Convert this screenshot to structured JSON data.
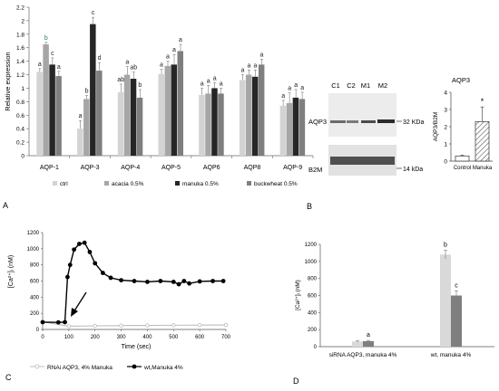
{
  "panel_letters": {
    "a": "A",
    "b": "B",
    "c": "C",
    "d": "D"
  },
  "chart_data": [
    {
      "id": "A",
      "type": "bar",
      "ylabel": "Relative expression",
      "ylim": [
        0,
        2.2
      ],
      "yticks": [
        "0",
        "0.2",
        "0.4",
        "0.6",
        "0.8",
        "1",
        "1.2",
        "1.4",
        "1.6",
        "1.8",
        "2",
        "2.2"
      ],
      "categories": [
        "AQP-1",
        "AQP-3",
        "AQP-4",
        "AQP-5",
        "AQP6",
        "AQP8",
        "AQP-9"
      ],
      "series": [
        {
          "name": "ctrl",
          "color": "#d3d3d3",
          "values": [
            1.24,
            0.4,
            0.94,
            1.21,
            0.9,
            1.12,
            0.74
          ],
          "errors": [
            0.05,
            0.12,
            0.12,
            0.07,
            0.1,
            0.08,
            0.08
          ]
        },
        {
          "name": "acacia 0.5%",
          "color": "#a6a6a6",
          "values": [
            1.65,
            0.84,
            1.2,
            1.33,
            0.92,
            1.2,
            0.78
          ],
          "errors": [
            0.03,
            0.05,
            0.12,
            0.07,
            0.12,
            0.07,
            0.15
          ]
        },
        {
          "name": "manuka 0.5%",
          "color": "#262626",
          "values": [
            1.35,
            1.95,
            1.14,
            1.35,
            1.0,
            1.17,
            0.86
          ],
          "errors": [
            0.1,
            0.1,
            0.1,
            0.15,
            0.08,
            0.1,
            0.12
          ]
        },
        {
          "name": "buckwheat 0.5%",
          "color": "#7f7f7f",
          "values": [
            1.18,
            1.26,
            0.86,
            1.55,
            0.92,
            1.35,
            0.84
          ],
          "errors": [
            0.07,
            0.12,
            0.12,
            0.1,
            0.08,
            0.08,
            0.1
          ]
        }
      ],
      "annotations": [
        [
          "a",
          "b",
          "c",
          "a"
        ],
        [
          "a",
          "b",
          "c",
          "d"
        ],
        [
          "ab",
          "a",
          "ab",
          "b"
        ],
        [
          "a",
          "a",
          "a",
          "a"
        ],
        [
          "a",
          "a",
          "a",
          "a"
        ],
        [
          "a",
          "a",
          "a",
          "a"
        ],
        [
          "a",
          "a",
          "a",
          "a"
        ]
      ]
    },
    {
      "id": "B",
      "type": "bar",
      "title": "AQP3",
      "ylabel": "AQP3/B2M",
      "ylim": [
        0,
        4
      ],
      "yticks": [
        "0",
        "1",
        "2",
        "3",
        "4"
      ],
      "categories": [
        "Control",
        "Manuka"
      ],
      "values": [
        0.3,
        2.3
      ],
      "errors": [
        0.05,
        0.85
      ],
      "significance": "*"
    },
    {
      "id": "C",
      "type": "line",
      "xlabel": "Time (sec)",
      "ylabel": "[Ca²⁺]ᵢ (nM)",
      "xlim": [
        0,
        700
      ],
      "ylim": [
        0,
        1200
      ],
      "xticks": [
        "0",
        "100",
        "200",
        "300",
        "400",
        "500",
        "600",
        "700"
      ],
      "yticks": [
        "0",
        "100",
        "200",
        "300",
        "400",
        "500",
        "600",
        "700",
        "800",
        "900",
        "1000",
        "1100",
        "1200"
      ],
      "series": [
        {
          "name": "RNAi AQP3, 4% Manuka",
          "color": "#bdbdbd",
          "x": [
            0,
            100,
            200,
            300,
            400,
            500,
            600,
            700
          ],
          "y": [
            95,
            40,
            45,
            48,
            50,
            52,
            54,
            55
          ]
        },
        {
          "name": "wt,Manuka 4%",
          "color": "#000000",
          "x": [
            0,
            60,
            85,
            95,
            105,
            120,
            140,
            160,
            180,
            200,
            230,
            260,
            300,
            350,
            400,
            450,
            500,
            520,
            540,
            560,
            600,
            650,
            690
          ],
          "y": [
            90,
            88,
            90,
            650,
            800,
            990,
            1060,
            1075,
            960,
            820,
            700,
            640,
            610,
            600,
            590,
            600,
            590,
            560,
            600,
            570,
            595,
            600,
            600
          ]
        }
      ]
    },
    {
      "id": "D",
      "type": "bar",
      "ylabel": "[Ca²⁺]ᵢ (nM)",
      "ylim": [
        0,
        1200
      ],
      "yticks": [
        "0",
        "200",
        "400",
        "600",
        "800",
        "1000",
        "1200"
      ],
      "categories": [
        "siRNA AQP3, manuka 4%",
        "wt, manuka 4%"
      ],
      "series": [
        {
          "color": "#d9d9d9",
          "values": [
            62,
            1080
          ],
          "errors": [
            10,
            50
          ]
        },
        {
          "color": "#7f7f7f",
          "values": [
            65,
            600
          ],
          "errors": [
            8,
            55
          ]
        }
      ],
      "annotations": [
        [
          "",
          "a"
        ],
        [
          "b",
          "c"
        ]
      ]
    }
  ],
  "blot": {
    "lanes": [
      "C1",
      "C2",
      "M1",
      "M2"
    ],
    "bands": [
      {
        "protein": "AQP3",
        "size": "32 KDa"
      },
      {
        "protein": "B2M",
        "size": "14 kDa"
      }
    ]
  }
}
